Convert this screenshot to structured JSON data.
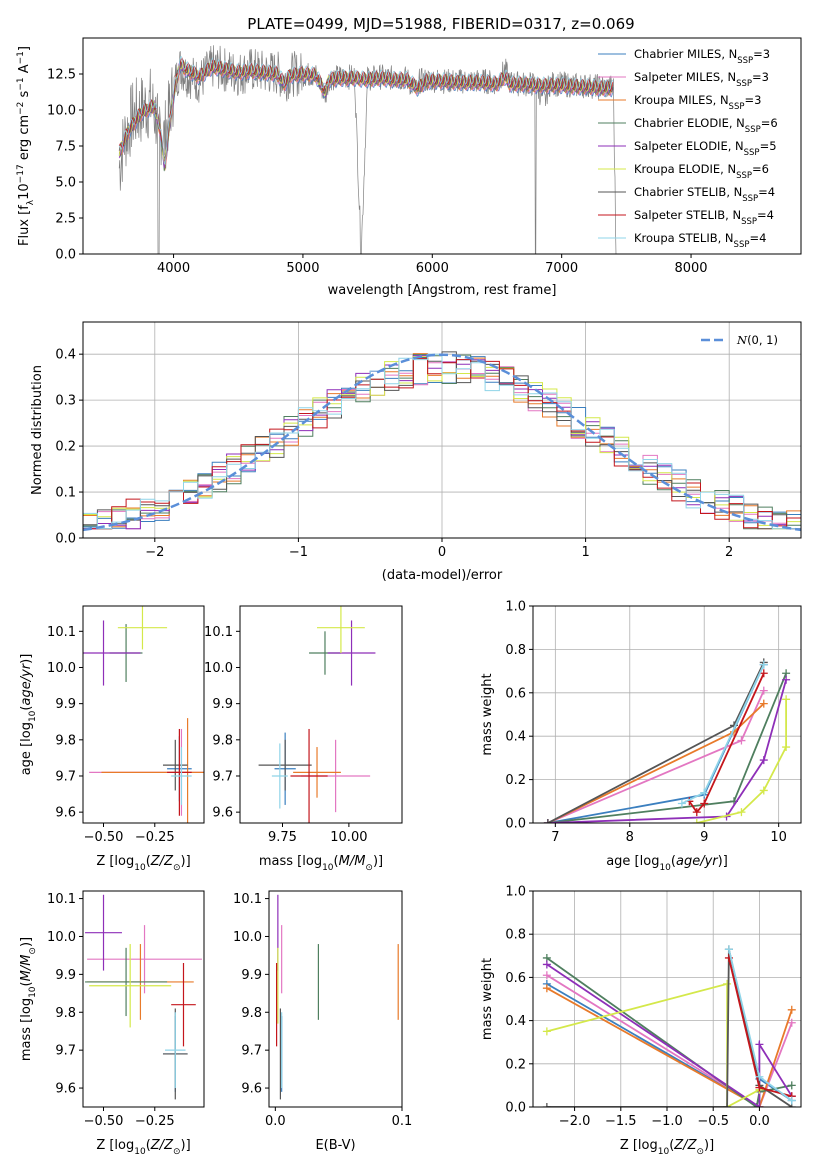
{
  "figure": {
    "title": "PLATE=0499, MJD=51988, FIBERID=0317, z=0.069"
  },
  "models": [
    {
      "name": "Chabrier MILES, N$_{SSP}$=3",
      "label_main": "Chabrier MILES, N",
      "label_sub": "SSP",
      "label_tail": "=3",
      "color": "#3b7fbf"
    },
    {
      "name": "Salpeter MILES, N$_{SSP}$=3",
      "label_main": "Salpeter MILES, N",
      "label_sub": "SSP",
      "label_tail": "=3",
      "color": "#e377c2"
    },
    {
      "name": "Kroupa MILES, N$_{SSP}$=3",
      "label_main": "Kroupa MILES, N",
      "label_sub": "SSP",
      "label_tail": "=3",
      "color": "#e87a2a"
    },
    {
      "name": "Chabrier ELODIE, N$_{SSP}$=6",
      "label_main": "Chabrier ELODIE, N",
      "label_sub": "SSP",
      "label_tail": "=6",
      "color": "#4f7f5f"
    },
    {
      "name": "Salpeter ELODIE, N$_{SSP}$=5",
      "label_main": "Salpeter ELODIE, N",
      "label_sub": "SSP",
      "label_tail": "=5",
      "color": "#8e2fb8"
    },
    {
      "name": "Kroupa ELODIE, N$_{SSP}$=6",
      "label_main": "Kroupa ELODIE, N",
      "label_sub": "SSP",
      "label_tail": "=6",
      "color": "#d4e84a"
    },
    {
      "name": "Chabrier STELIB, N$_{SSP}$=4",
      "label_main": "Chabrier STELIB, N",
      "label_sub": "SSP",
      "label_tail": "=4",
      "color": "#555555"
    },
    {
      "name": "Salpeter STELIB, N$_{SSP}$=4",
      "label_main": "Salpeter STELIB, N",
      "label_sub": "SSP",
      "label_tail": "=4",
      "color": "#c4161c"
    },
    {
      "name": "Kroupa STELIB, N$_{SSP}$=4",
      "label_main": "Kroupa STELIB, N",
      "label_sub": "SSP",
      "label_tail": "=4",
      "color": "#8fd4e8"
    }
  ],
  "chart_data": [
    {
      "id": "spectrum",
      "type": "line",
      "xlabel": "wavelength [Angstrom, rest frame]",
      "ylabel": "Flux [f$_\\lambda$10$^{-17}$ erg cm$^{-2}$ s$^{-1}$ A$^{-1}$]",
      "ylabel_parts": [
        "Flux [f",
        "λ",
        "10",
        "−17",
        " erg cm",
        "−2",
        " s",
        "−1",
        " A",
        "−1",
        "]"
      ],
      "xlim": [
        3300,
        8850
      ],
      "ylim": [
        0,
        15
      ],
      "xticks": [
        4000,
        5000,
        6000,
        7000,
        8000
      ],
      "yticks": [
        0.0,
        2.5,
        5.0,
        7.5,
        10.0,
        12.5
      ],
      "data_color": "#808080",
      "data_x": [
        3580,
        3620,
        3680,
        3750,
        3820,
        3890,
        3930,
        3960,
        4000,
        4050,
        4100,
        4200,
        4300,
        4400,
        4500,
        4600,
        4700,
        4800,
        4860,
        4900,
        5000,
        5100,
        5175,
        5200,
        5300,
        5400,
        5450,
        5500,
        5600,
        5700,
        5800,
        5890,
        5900,
        6000,
        6100,
        6200,
        6300,
        6400,
        6500,
        6563,
        6600,
        6700,
        6800,
        6870,
        6900,
        7000,
        7100,
        7200,
        7300,
        7400,
        7420
      ],
      "data_y": [
        6.0,
        8.0,
        9.5,
        10.0,
        10.5,
        9.0,
        8.0,
        9.5,
        11.5,
        13.0,
        12.5,
        12.0,
        13.0,
        12.8,
        12.5,
        12.8,
        12.6,
        12.6,
        12.0,
        12.5,
        12.5,
        12.4,
        11.0,
        12.2,
        12.3,
        12.3,
        0.0,
        12.2,
        12.3,
        12.2,
        12.2,
        11.2,
        12.0,
        12.1,
        12.0,
        12.0,
        12.0,
        12.0,
        11.9,
        12.8,
        11.9,
        11.8,
        11.8,
        10.5,
        11.8,
        11.8,
        11.7,
        11.7,
        11.6,
        11.6,
        0.0
      ],
      "model_x": [
        3580,
        3650,
        3750,
        3850,
        3900,
        3930,
        3970,
        4000,
        4050,
        4100,
        4200,
        4300,
        4400,
        4500,
        4600,
        4700,
        4800,
        4860,
        4900,
        5000,
        5100,
        5175,
        5200,
        5300,
        5400,
        5500,
        5600,
        5700,
        5800,
        5890,
        5950,
        6000,
        6100,
        6200,
        6300,
        6400,
        6500,
        6563,
        6600,
        6700,
        6800,
        6900,
        7000,
        7100,
        7200,
        7300,
        7400
      ],
      "model_y": [
        7.0,
        8.5,
        9.8,
        10.3,
        8.5,
        6.0,
        9.0,
        11.0,
        13.2,
        12.8,
        12.3,
        13.0,
        12.8,
        12.6,
        12.7,
        12.6,
        12.5,
        11.8,
        12.4,
        12.5,
        12.4,
        11.2,
        12.1,
        12.2,
        12.2,
        12.1,
        12.2,
        12.1,
        12.1,
        11.5,
        12.0,
        12.0,
        12.0,
        11.9,
        11.9,
        11.9,
        11.8,
        12.3,
        11.8,
        11.8,
        11.7,
        11.7,
        11.7,
        11.6,
        11.6,
        11.5,
        11.5
      ]
    },
    {
      "id": "residuals",
      "type": "line",
      "xlabel": "(data-model)/error",
      "ylabel": "Normed distribution",
      "xlim": [
        -2.5,
        2.5
      ],
      "ylim": [
        0,
        0.47
      ],
      "xticks": [
        -2,
        -1,
        0,
        1,
        2
      ],
      "yticks": [
        0.0,
        0.1,
        0.2,
        0.3,
        0.4
      ],
      "grid": true,
      "legend": "top-right",
      "reference_label_main": "N",
      "reference_label_tail": "(0, 1)",
      "reference_color": "#5b8fd9",
      "bin_width": 0.1
    },
    {
      "id": "age-vs-Z",
      "type": "scatter",
      "xlabel": "Z [log$_{10}$(Z/Z$_\\odot$)]",
      "ylabel": "age  [log$_{10}$(age/yr)]",
      "xlim": [
        -0.6,
        -0.01
      ],
      "ylim": [
        9.57,
        10.17
      ],
      "xticks": [
        -0.5,
        -0.25
      ],
      "yticks": [
        9.6,
        9.7,
        9.8,
        9.9,
        10.0,
        10.1
      ],
      "points": [
        {
          "model": 0,
          "x": -0.13,
          "y": 9.72,
          "xerr": 0.06,
          "yerr": 0.09
        },
        {
          "model": 1,
          "x": -0.12,
          "y": 9.71,
          "xerr": 0.45,
          "yerr": 0.12
        },
        {
          "model": 2,
          "x": -0.09,
          "y": 9.71,
          "xerr": 0.42,
          "yerr": 0.15
        },
        {
          "model": 3,
          "x": -0.39,
          "y": 10.04,
          "xerr": 0.08,
          "yerr": 0.08
        },
        {
          "model": 4,
          "x": -0.5,
          "y": 10.04,
          "xerr": 0.18,
          "yerr": 0.09
        },
        {
          "model": 5,
          "x": -0.31,
          "y": 10.11,
          "xerr": 0.12,
          "yerr": 0.06
        },
        {
          "model": 6,
          "x": -0.15,
          "y": 9.73,
          "xerr": 0.06,
          "yerr": 0.07
        },
        {
          "model": 7,
          "x": -0.13,
          "y": 9.71,
          "xerr": 0.06,
          "yerr": 0.12
        },
        {
          "model": 8,
          "x": -0.12,
          "y": 9.7,
          "xerr": 0.05,
          "yerr": 0.08
        }
      ]
    },
    {
      "id": "age-vs-mass",
      "type": "scatter",
      "xlabel": "mass [log$_{10}$(M/M$_\\odot$)]",
      "ylabel": "",
      "xlim": [
        9.59,
        10.2
      ],
      "ylim": [
        9.57,
        10.17
      ],
      "xticks": [
        9.75,
        10.0
      ],
      "yticks": [
        9.6,
        9.7,
        9.8,
        9.9,
        10.0,
        10.1
      ],
      "points": [
        {
          "model": 0,
          "x": 9.76,
          "y": 9.72,
          "xerr": 0.04,
          "yerr": 0.1
        },
        {
          "model": 1,
          "x": 9.95,
          "y": 9.7,
          "xerr": 0.13,
          "yerr": 0.1
        },
        {
          "model": 2,
          "x": 9.88,
          "y": 9.71,
          "xerr": 0.09,
          "yerr": 0.07
        },
        {
          "model": 3,
          "x": 9.91,
          "y": 10.04,
          "xerr": 0.06,
          "yerr": 0.06
        },
        {
          "model": 4,
          "x": 10.01,
          "y": 10.04,
          "xerr": 0.09,
          "yerr": 0.09
        },
        {
          "model": 5,
          "x": 9.97,
          "y": 10.11,
          "xerr": 0.09,
          "yerr": 0.07
        },
        {
          "model": 6,
          "x": 9.76,
          "y": 9.73,
          "xerr": 0.1,
          "yerr": 0.07
        },
        {
          "model": 7,
          "x": 9.85,
          "y": 9.7,
          "xerr": 0.07,
          "yerr": 0.13
        },
        {
          "model": 8,
          "x": 9.74,
          "y": 9.7,
          "xerr": 0.03,
          "yerr": 0.09
        }
      ]
    },
    {
      "id": "weight-vs-age",
      "type": "line",
      "xlabel": "age  [log$_{10}$(age/yr)]",
      "ylabel": "mass weight",
      "xlim": [
        6.7,
        10.3
      ],
      "ylim": [
        0,
        1.0
      ],
      "xticks": [
        7,
        8,
        9,
        10
      ],
      "yticks": [
        0.0,
        0.2,
        0.4,
        0.6,
        0.8,
        1.0
      ],
      "grid": true,
      "series": [
        {
          "model": 0,
          "x": [
            6.9,
            9.0,
            9.8
          ],
          "y": [
            0.0,
            0.13,
            0.73
          ]
        },
        {
          "model": 1,
          "x": [
            6.9,
            9.5,
            9.8
          ],
          "y": [
            0.0,
            0.38,
            0.61
          ]
        },
        {
          "model": 2,
          "x": [
            6.9,
            9.4,
            9.8
          ],
          "y": [
            0.0,
            0.42,
            0.55
          ]
        },
        {
          "model": 3,
          "x": [
            6.9,
            9.4,
            10.1
          ],
          "y": [
            0.0,
            0.1,
            0.69
          ]
        },
        {
          "model": 4,
          "x": [
            6.9,
            9.3,
            9.8,
            10.1
          ],
          "y": [
            0.0,
            0.03,
            0.29,
            0.66
          ]
        },
        {
          "model": 5,
          "x": [
            8.9,
            9.5,
            9.8,
            10.1,
            10.1
          ],
          "y": [
            0.0,
            0.05,
            0.15,
            0.35,
            0.57
          ]
        },
        {
          "model": 6,
          "x": [
            6.9,
            9.4,
            9.8
          ],
          "y": [
            0.0,
            0.45,
            0.74
          ]
        },
        {
          "model": 7,
          "x": [
            8.8,
            8.9,
            9.0,
            9.8
          ],
          "y": [
            0.1,
            0.05,
            0.09,
            0.69
          ]
        },
        {
          "model": 8,
          "x": [
            8.7,
            9.0,
            9.8
          ],
          "y": [
            0.09,
            0.14,
            0.73
          ]
        }
      ]
    },
    {
      "id": "mass-vs-Z",
      "type": "scatter",
      "xlabel": "Z [log$_{10}$(Z/Z$_\\odot$)]",
      "ylabel": "mass [log$_{10}$(M/M$_\\odot$)]",
      "xlim": [
        -0.6,
        -0.01
      ],
      "ylim": [
        9.55,
        10.12
      ],
      "xticks": [
        -0.5,
        -0.25
      ],
      "yticks": [
        9.6,
        9.7,
        9.8,
        9.9,
        10.0,
        10.1
      ],
      "points": [
        {
          "model": 0,
          "x": -0.15,
          "y": 9.69,
          "xerr": 0.06,
          "yerr": 0.1
        },
        {
          "model": 1,
          "x": -0.3,
          "y": 9.94,
          "xerr": 0.28,
          "yerr": 0.09
        },
        {
          "model": 2,
          "x": -0.32,
          "y": 9.88,
          "xerr": 0.26,
          "yerr": 0.1
        },
        {
          "model": 3,
          "x": -0.39,
          "y": 9.88,
          "xerr": 0.2,
          "yerr": 0.09
        },
        {
          "model": 4,
          "x": -0.5,
          "y": 10.01,
          "xerr": 0.09,
          "yerr": 0.1
        },
        {
          "model": 5,
          "x": -0.37,
          "y": 9.87,
          "xerr": 0.2,
          "yerr": 0.11
        },
        {
          "model": 6,
          "x": -0.15,
          "y": 9.69,
          "xerr": 0.06,
          "yerr": 0.12
        },
        {
          "model": 7,
          "x": -0.11,
          "y": 9.82,
          "xerr": 0.06,
          "yerr": 0.11
        },
        {
          "model": 8,
          "x": -0.15,
          "y": 9.7,
          "xerr": 0.05,
          "yerr": 0.1
        }
      ]
    },
    {
      "id": "mass-vs-ebv",
      "type": "scatter",
      "xlabel": "E(B-V)",
      "ylabel": "",
      "xlim": [
        -0.005,
        0.1
      ],
      "ylim": [
        9.55,
        10.12
      ],
      "xticks": [
        0.0,
        0.1
      ],
      "yticks": [
        9.6,
        9.7,
        9.8,
        9.9,
        10.0,
        10.1
      ],
      "points": [
        {
          "model": 0,
          "x": 0.005,
          "y": 9.69,
          "xerr": 0.0,
          "yerr": 0.1
        },
        {
          "model": 1,
          "x": 0.005,
          "y": 9.94,
          "xerr": 0.0,
          "yerr": 0.09
        },
        {
          "model": 2,
          "x": 0.097,
          "y": 9.88,
          "xerr": 0.0,
          "yerr": 0.1
        },
        {
          "model": 3,
          "x": 0.034,
          "y": 9.88,
          "xerr": 0.0,
          "yerr": 0.1
        },
        {
          "model": 4,
          "x": 0.002,
          "y": 10.01,
          "xerr": 0.0,
          "yerr": 0.1
        },
        {
          "model": 5,
          "x": 0.002,
          "y": 9.87,
          "xerr": 0.0,
          "yerr": 0.1
        },
        {
          "model": 6,
          "x": 0.004,
          "y": 9.69,
          "xerr": 0.0,
          "yerr": 0.12
        },
        {
          "model": 7,
          "x": 0.001,
          "y": 9.82,
          "xerr": 0.0,
          "yerr": 0.11
        },
        {
          "model": 8,
          "x": 0.005,
          "y": 9.7,
          "xerr": 0.0,
          "yerr": 0.1
        }
      ]
    },
    {
      "id": "weight-vs-Z",
      "type": "line",
      "xlabel": "Z [log$_{10}$(Z/Z$_\\odot$)]",
      "ylabel": "mass weight",
      "xlim": [
        -2.45,
        0.45
      ],
      "ylim": [
        0,
        1.0
      ],
      "xticks": [
        -2.0,
        -1.5,
        -1.0,
        -0.5,
        0.0
      ],
      "yticks": [
        0.0,
        0.2,
        0.4,
        0.6,
        0.8,
        1.0
      ],
      "grid": true,
      "series": [
        {
          "model": 0,
          "x": [
            -2.3,
            0.0,
            0.0,
            0.35
          ],
          "y": [
            0.57,
            0.0,
            0.13,
            0.03
          ]
        },
        {
          "model": 1,
          "x": [
            -2.3,
            0.0,
            0.0,
            0.35
          ],
          "y": [
            0.61,
            0.0,
            0.0,
            0.39
          ]
        },
        {
          "model": 2,
          "x": [
            -2.3,
            0.0,
            0.0,
            0.35
          ],
          "y": [
            0.55,
            0.0,
            0.0,
            0.45
          ]
        },
        {
          "model": 3,
          "x": [
            -2.3,
            -0.03,
            0.0,
            0.35
          ],
          "y": [
            0.69,
            0.0,
            0.07,
            0.1
          ]
        },
        {
          "model": 4,
          "x": [
            -2.3,
            0.0,
            0.0,
            0.35
          ],
          "y": [
            0.66,
            0.0,
            0.29,
            0.05
          ]
        },
        {
          "model": 5,
          "x": [
            -2.3,
            -0.35,
            -0.35,
            0.0
          ],
          "y": [
            0.35,
            0.57,
            0.0,
            0.08
          ]
        },
        {
          "model": 6,
          "x": [
            -2.3,
            -0.35,
            -0.33,
            0.0,
            0.35
          ],
          "y": [
            0.0,
            0.0,
            0.73,
            0.1,
            0.0
          ]
        },
        {
          "model": 7,
          "x": [
            -0.33,
            0.0,
            0.35
          ],
          "y": [
            0.69,
            0.09,
            0.05
          ]
        },
        {
          "model": 8,
          "x": [
            -0.33,
            0.0,
            0.35
          ],
          "y": [
            0.73,
            0.14,
            0.03
          ]
        }
      ]
    }
  ]
}
